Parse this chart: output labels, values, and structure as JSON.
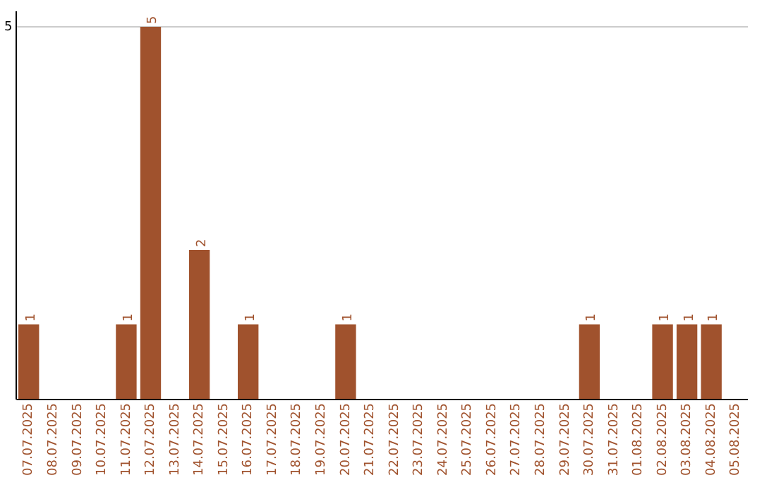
{
  "chart_data": {
    "type": "bar",
    "categories": [
      "07.07.2025",
      "08.07.2025",
      "09.07.2025",
      "10.07.2025",
      "11.07.2025",
      "12.07.2025",
      "13.07.2025",
      "14.07.2025",
      "15.07.2025",
      "16.07.2025",
      "17.07.2025",
      "18.07.2025",
      "19.07.2025",
      "20.07.2025",
      "21.07.2025",
      "22.07.2025",
      "23.07.2025",
      "24.07.2025",
      "25.07.2025",
      "26.07.2025",
      "27.07.2025",
      "28.07.2025",
      "29.07.2025",
      "30.07.2025",
      "31.07.2025",
      "01.08.2025",
      "02.08.2025",
      "03.08.2025",
      "04.08.2025",
      "05.08.2025"
    ],
    "values": [
      1,
      0,
      0,
      0,
      1,
      5,
      0,
      2,
      0,
      1,
      0,
      0,
      0,
      1,
      0,
      0,
      0,
      0,
      0,
      0,
      0,
      0,
      0,
      1,
      0,
      0,
      1,
      1,
      1,
      0
    ],
    "color": "#a0522d",
    "value_labels": [
      "1",
      null,
      null,
      null,
      "1",
      "5",
      null,
      "2",
      null,
      "1",
      null,
      null,
      null,
      "1",
      null,
      null,
      null,
      null,
      null,
      null,
      null,
      null,
      null,
      "1",
      null,
      null,
      "1",
      "1",
      "1",
      null
    ],
    "ylim": [
      0,
      5.2
    ],
    "yticks": [
      5
    ],
    "grid": "y",
    "legend": false
  }
}
